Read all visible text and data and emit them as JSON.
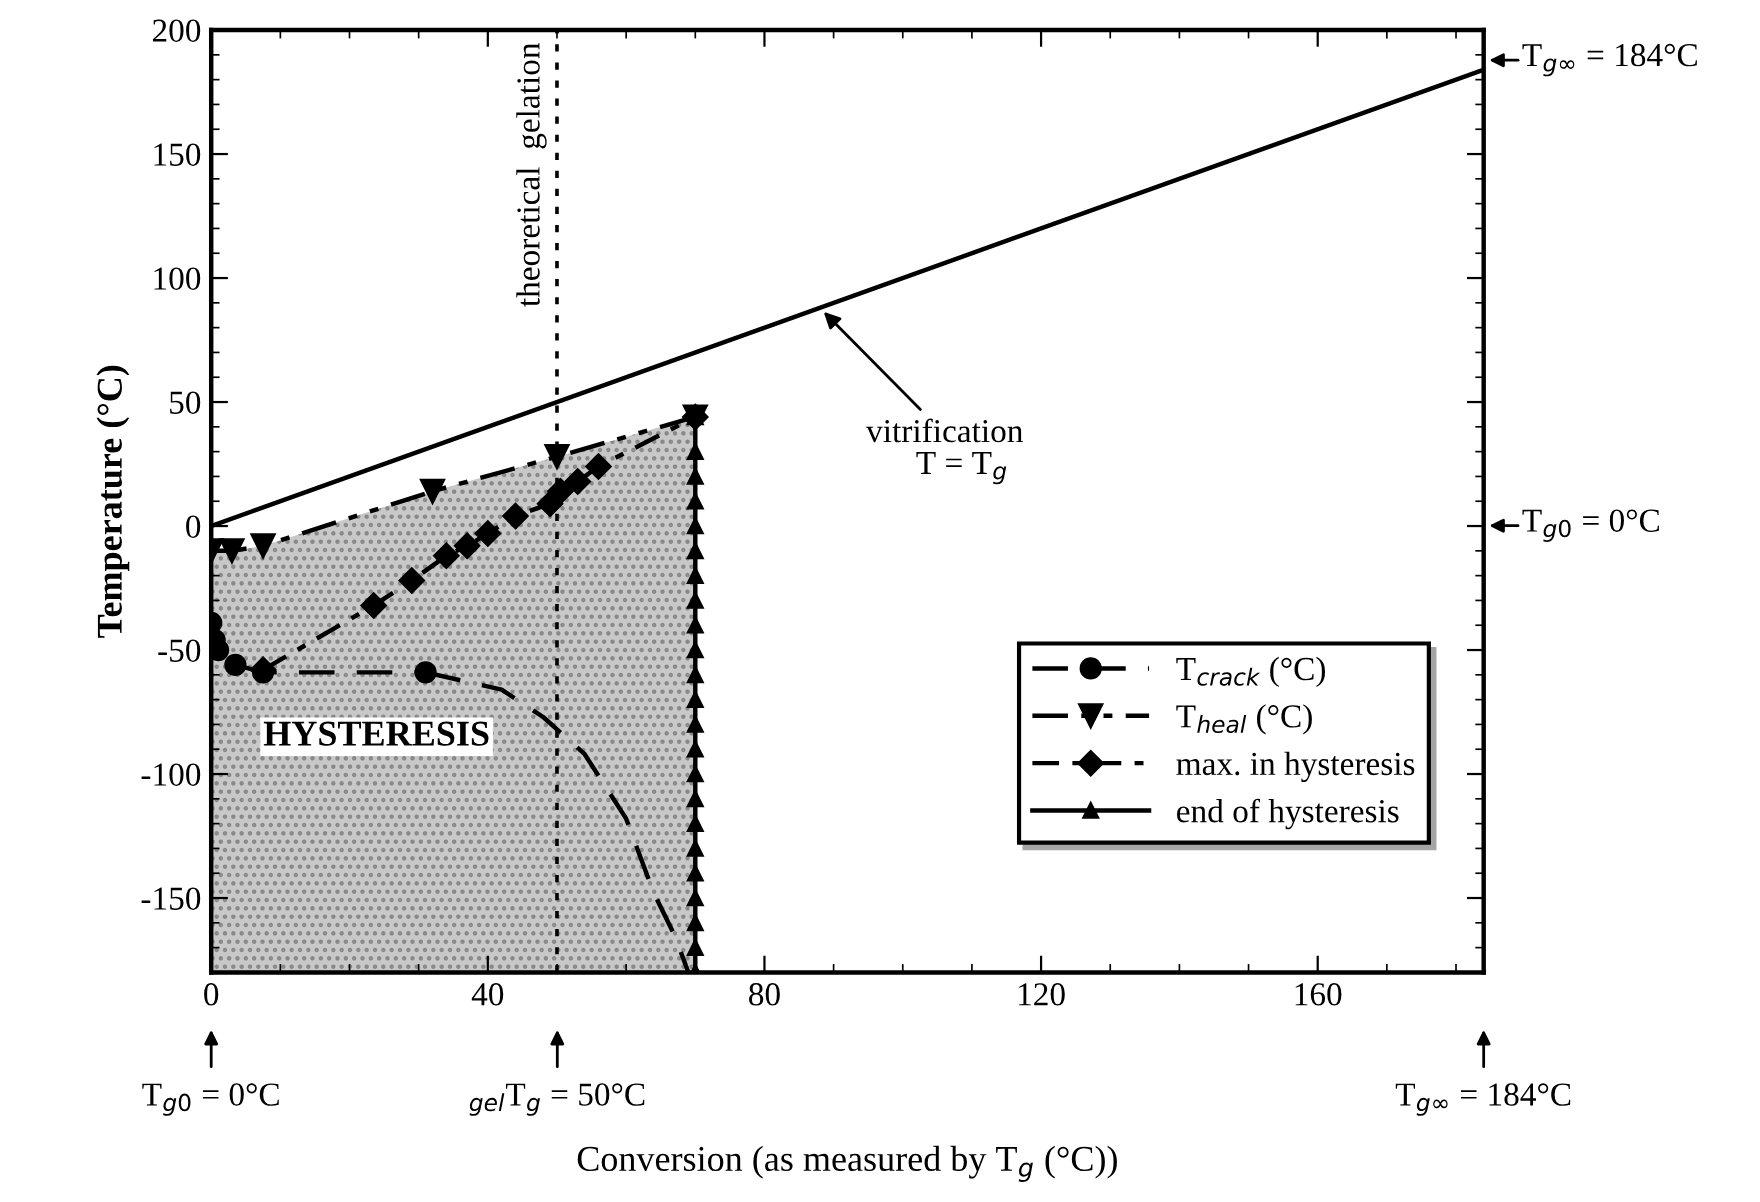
{
  "chart_data": {
    "type": "line",
    "xlabel": "Conversion (as measured by T$_{g}$ (°C))",
    "ylabel": "Temperature (°C)",
    "xlim": [
      0,
      184
    ],
    "ylim": [
      -180,
      200
    ],
    "xticks": [
      0,
      40,
      80,
      120,
      160
    ],
    "yticks": [
      -150,
      -100,
      -50,
      0,
      50,
      100,
      150,
      200
    ],
    "grid": false,
    "legend": "bottom right",
    "series": [
      {
        "color": "#000000",
        "x": [
          0,
          184
        ],
        "values": [
          0,
          184
        ],
        "marker": "none",
        "line_style": "solid"
      },
      {
        "name": "T$_{crack}$ (°C)",
        "color": "#000000",
        "x": [
          0,
          0.5,
          1,
          3.5,
          7.5,
          31
        ],
        "values": [
          -39,
          -46,
          -50,
          -56,
          -59,
          -59
        ],
        "marker": "circle",
        "line_style": "dashed"
      },
      {
        "color": "#000000",
        "x": [
          31,
          42,
          48,
          54,
          60,
          64,
          67,
          69
        ],
        "values": [
          -59,
          -66,
          -77,
          -92,
          -118,
          -148,
          -165,
          -180
        ],
        "marker": "none",
        "line_style": "dashed"
      },
      {
        "name": "T$_{heal}$ (°C)",
        "color": "#000000",
        "x": [
          0,
          3,
          7.5,
          32,
          50,
          70
        ],
        "values": [
          -10,
          -10,
          -8,
          14,
          28,
          44
        ],
        "marker": "triangle",
        "line_style": "dashdotdot"
      },
      {
        "name": "max. in hysteresis",
        "color": "#000000",
        "x": [
          7.5,
          23.5,
          29,
          34,
          37,
          40,
          44,
          49,
          50.5,
          53,
          56,
          70
        ],
        "values": [
          -58,
          -32,
          -22,
          -12,
          -8,
          -3,
          4,
          9,
          14,
          18,
          24,
          44
        ],
        "marker": "diamond",
        "line_style": "dashdot"
      },
      {
        "name": "end of hysteresis",
        "color": "#000000",
        "x": [
          70,
          70,
          70,
          70,
          70,
          70,
          70,
          70,
          70,
          70,
          70,
          70,
          70,
          70,
          70,
          70,
          70,
          70,
          70,
          70,
          70,
          70,
          70
        ],
        "values": [
          -180,
          -170,
          -160,
          -150,
          -140,
          -130,
          -120,
          -110,
          -100,
          -90,
          -80,
          -70,
          -60,
          -50,
          -40,
          -30,
          -20,
          -10,
          0,
          10,
          20,
          30,
          44
        ],
        "marker": "triangle_small",
        "line_style": "solid"
      }
    ],
    "bands": [
      {
        "axis": "x",
        "from": 0,
        "to": 70,
        "color": "#c8c8c8"
      }
    ],
    "ref_lines": [
      {
        "axis": "x",
        "value": 50,
        "label": "theoretical  gelation",
        "line_style": "dotted"
      }
    ],
    "annotations": [
      "HYSTERESIS",
      {
        "text": "vitrification",
        "x": 88,
        "y": 88
      },
      "T = T$_{g}$",
      "T$_{g∞}$ = 184°C",
      "T$_{g0}$ = 0°C",
      "T$_{g0}$ = 0°C",
      "$_{gel}$T$_{g}$ = 50°C",
      "T$_{g∞}$ = 184°C"
    ]
  }
}
